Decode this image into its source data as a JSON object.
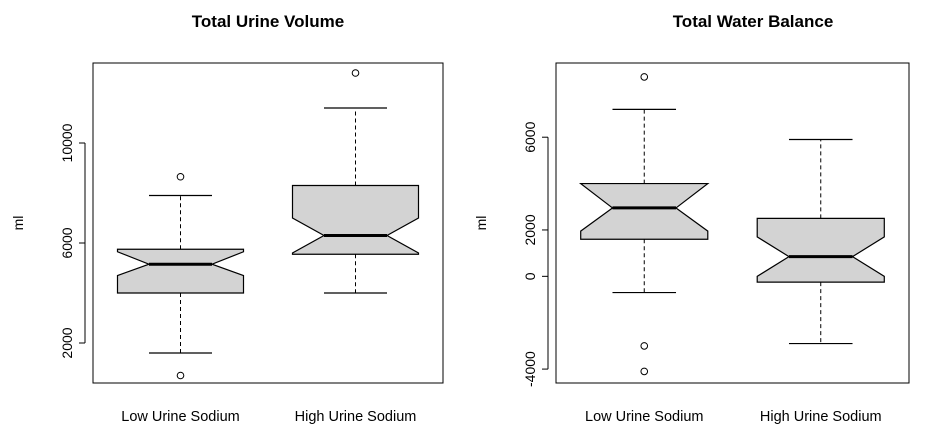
{
  "chart_data": [
    {
      "type": "boxplot",
      "notched": true,
      "title": "Total Urine Volume",
      "ylabel": "ml",
      "xlabel": "",
      "ylim": [
        400,
        13200
      ],
      "yticks": [
        2000,
        6000,
        10000
      ],
      "categories": [
        "Low Urine Sodium",
        "High Urine Sodium"
      ],
      "boxes": [
        {
          "whisker_low": 1600,
          "q1": 4000,
          "median": 5150,
          "q3": 5750,
          "whisker_high": 7900,
          "notch_low": 4700,
          "notch_high": 5650,
          "outliers": [
            700,
            8650
          ]
        },
        {
          "whisker_low": 4000,
          "q1": 5550,
          "median": 6300,
          "q3": 8300,
          "whisker_high": 11400,
          "notch_low": 5600,
          "notch_high": 7000,
          "outliers": [
            12800
          ]
        }
      ],
      "box_fill": "#d3d3d3"
    },
    {
      "type": "boxplot",
      "notched": true,
      "title": "Total Water Balance",
      "ylabel": "ml",
      "xlabel": "",
      "ylim": [
        -4600,
        9200
      ],
      "yticks": [
        -4000,
        0,
        2000,
        6000
      ],
      "categories": [
        "Low Urine Sodium",
        "High Urine Sodium"
      ],
      "boxes": [
        {
          "whisker_low": -700,
          "q1": 1600,
          "median": 2950,
          "q3": 4000,
          "whisker_high": 7200,
          "notch_low": 1950,
          "notch_high": 4000,
          "outliers": [
            -3000,
            -4100,
            8600
          ]
        },
        {
          "whisker_low": -2900,
          "q1": -250,
          "median": 850,
          "q3": 2500,
          "whisker_high": 5900,
          "notch_low": 0,
          "notch_high": 1700,
          "outliers": []
        }
      ],
      "box_fill": "#d3d3d3"
    }
  ]
}
